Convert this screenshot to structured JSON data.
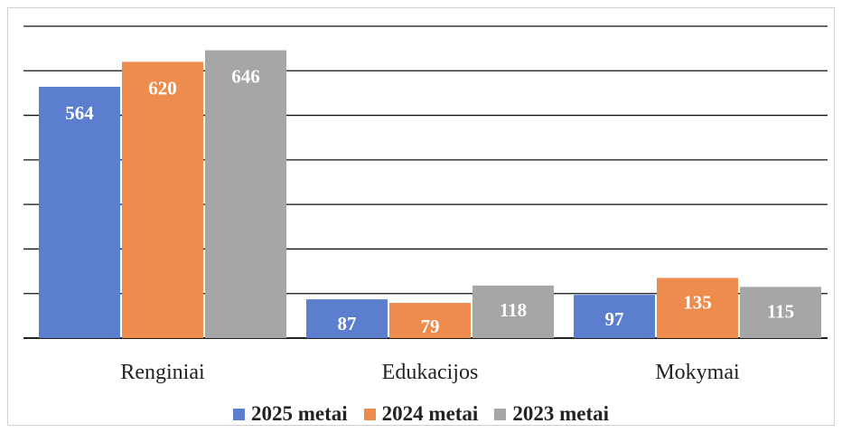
{
  "chart_data": {
    "type": "bar",
    "categories": [
      "Renginiai",
      "Edukacijos",
      "Mokymai"
    ],
    "series": [
      {
        "name": "2025 metai",
        "values": [
          564,
          87,
          97
        ],
        "color": "#5b7fce"
      },
      {
        "name": "2024 metai",
        "values": [
          620,
          79,
          135
        ],
        "color": "#ee8c4d"
      },
      {
        "name": "2023 metai",
        "values": [
          646,
          118,
          115
        ],
        "color": "#a6a6a6"
      }
    ],
    "ylim": [
      0,
      700
    ],
    "grid": true,
    "legend_position": "bottom",
    "data_labels": true
  }
}
